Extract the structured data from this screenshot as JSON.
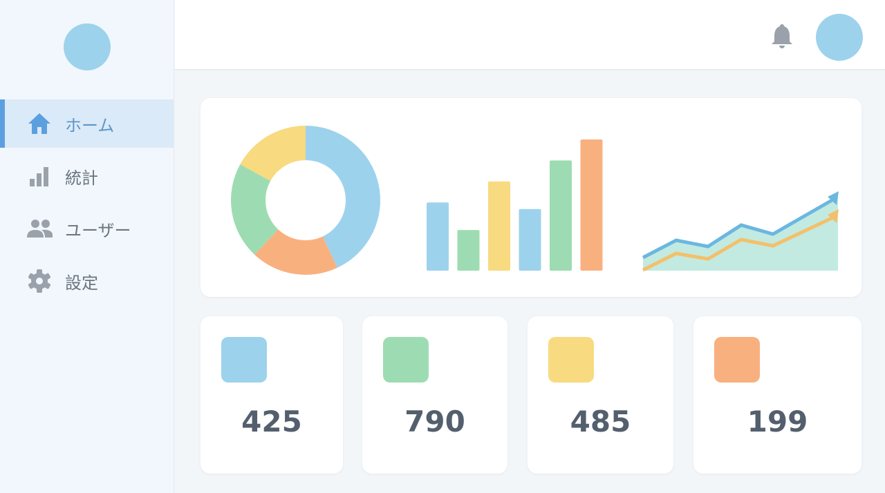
{
  "sidebar": {
    "items": [
      {
        "label": "ホーム",
        "icon": "home-icon",
        "active": true
      },
      {
        "label": "統計",
        "icon": "bar-chart-icon"
      },
      {
        "label": "ユーザー",
        "icon": "users-icon"
      },
      {
        "label": "設定",
        "icon": "gear-icon"
      }
    ]
  },
  "header": {
    "icons": [
      "bell-icon",
      "avatar"
    ]
  },
  "colors": {
    "blue": "#9dd2ec",
    "green": "#9ddcb2",
    "yellow": "#f8da80",
    "orange": "#f9b07f",
    "accent": "#5c9fdf"
  },
  "chart_data": [
    {
      "type": "pie",
      "variant": "donut",
      "values": [
        43,
        19,
        21,
        17
      ],
      "colors": [
        "#9dd2ec",
        "#f9b07f",
        "#9ddcb2",
        "#f8da80"
      ]
    },
    {
      "type": "bar",
      "values": [
        52,
        31,
        68,
        47,
        84,
        100
      ],
      "colors": [
        "#9dd2ec",
        "#9ddcb2",
        "#f8da80",
        "#9dd2ec",
        "#9ddcb2",
        "#f9b07f"
      ]
    },
    {
      "type": "line",
      "series": [
        {
          "values": [
            19,
            44,
            35,
            66,
            53,
            103
          ],
          "color": "#6bb7e0",
          "area": true
        },
        {
          "values": [
            1,
            25,
            17,
            45,
            36,
            77
          ],
          "color": "#f3c06a"
        }
      ]
    }
  ],
  "stats": [
    {
      "value": "425",
      "color": "#9dd2ec"
    },
    {
      "value": "790",
      "color": "#9ddcb2"
    },
    {
      "value": "485",
      "color": "#f8da80"
    },
    {
      "value": "199",
      "color": "#f9b07f"
    }
  ]
}
